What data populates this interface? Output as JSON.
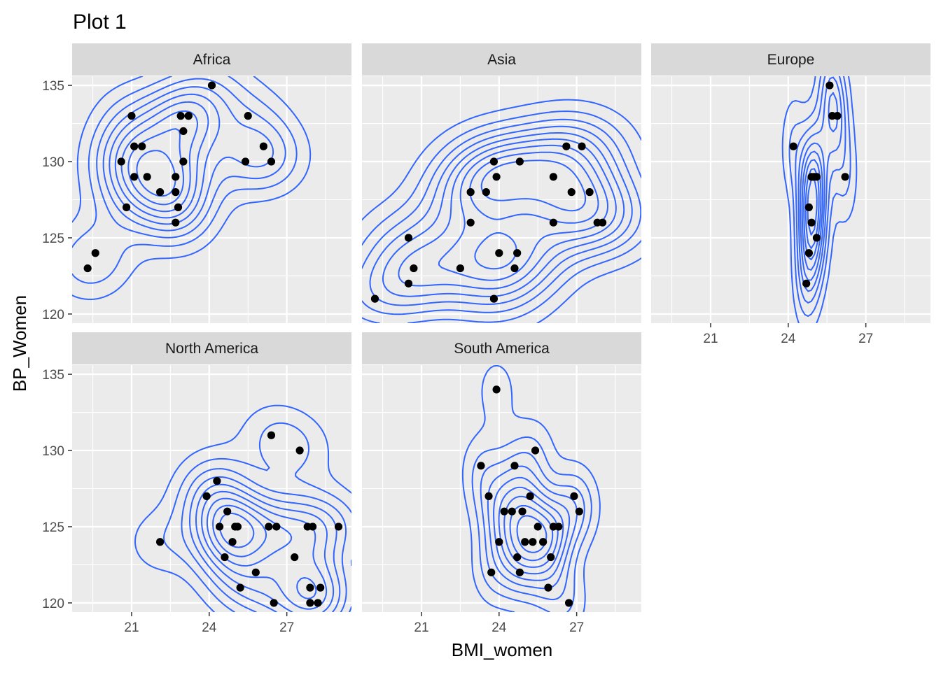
{
  "chart_data": {
    "type": "scatter",
    "title": "Plot 1",
    "xlabel": "BMI_women",
    "ylabel": "BP_Women",
    "xlim": [
      18.7,
      29.5
    ],
    "ylim": [
      119.4,
      135.6
    ],
    "x_ticks": [
      21,
      24,
      27
    ],
    "y_ticks": [
      120,
      125,
      130,
      135
    ],
    "grid": true,
    "overlay": "2d density contours",
    "colors": {
      "points": "#000000",
      "contours": "#3366FF",
      "panel_background": "#EBEBEB",
      "strip_background": "#D9D9D9",
      "grid": "#FFFFFF"
    },
    "panels": [
      {
        "name": "Africa",
        "x": [
          19.3,
          19.6,
          20.6,
          20.8,
          21.0,
          21.1,
          21.1,
          21.4,
          21.6,
          22.1,
          22.7,
          22.7,
          22.7,
          22.8,
          22.9,
          23.0,
          23.0,
          23.2,
          23.2,
          24.1,
          25.4,
          25.5,
          26.1,
          26.4
        ],
        "y": [
          123,
          124,
          130,
          127,
          133,
          131,
          129,
          131,
          129,
          128,
          129,
          128,
          126,
          127,
          133,
          132,
          130,
          133,
          133,
          135,
          130,
          133,
          131,
          130
        ]
      },
      {
        "name": "Asia",
        "x": [
          19.2,
          20.5,
          20.5,
          20.7,
          22.5,
          22.9,
          22.9,
          23.5,
          23.8,
          23.8,
          23.9,
          24.0,
          24.6,
          24.7,
          24.8,
          26.1,
          26.1,
          26.6,
          26.8,
          27.2,
          27.5,
          27.8,
          28.0
        ],
        "y": [
          121,
          122,
          125,
          123,
          123,
          126,
          128,
          128,
          121,
          130,
          129,
          124,
          123,
          124,
          130,
          126,
          129,
          131,
          128,
          131,
          128,
          126,
          126
        ]
      },
      {
        "name": "Europe",
        "x": [
          24.2,
          24.7,
          24.8,
          24.8,
          24.9,
          24.9,
          25.0,
          25.1,
          25.1,
          25.6,
          25.7,
          25.9,
          26.2
        ],
        "y": [
          131,
          122,
          124,
          127,
          129,
          126,
          129,
          129,
          125,
          135,
          133,
          133,
          129
        ]
      },
      {
        "name": "North America",
        "x": [
          22.1,
          23.9,
          24.3,
          24.4,
          24.6,
          24.7,
          24.9,
          25.0,
          25.1,
          25.2,
          25.8,
          26.3,
          26.4,
          26.5,
          26.6,
          27.3,
          27.5,
          27.8,
          27.9,
          27.9,
          28.0,
          28.2,
          28.3,
          29.0
        ],
        "y": [
          124,
          127,
          128,
          125,
          123,
          126,
          124,
          125,
          125,
          121,
          122,
          125,
          131,
          120,
          125,
          123,
          130,
          125,
          121,
          120,
          125,
          120,
          121,
          125
        ]
      },
      {
        "name": "South America",
        "x": [
          23.3,
          23.6,
          23.7,
          23.9,
          24.0,
          24.2,
          24.5,
          24.6,
          24.7,
          24.8,
          24.9,
          25.0,
          25.2,
          25.3,
          25.4,
          25.5,
          25.7,
          25.9,
          26.0,
          26.1,
          26.3,
          26.7,
          26.9,
          27.1
        ],
        "y": [
          129,
          127,
          122,
          134,
          124,
          126,
          126,
          129,
          123,
          122,
          126,
          124,
          127,
          124,
          130,
          125,
          124,
          121,
          123,
          125,
          125,
          120,
          127,
          126
        ]
      }
    ]
  }
}
